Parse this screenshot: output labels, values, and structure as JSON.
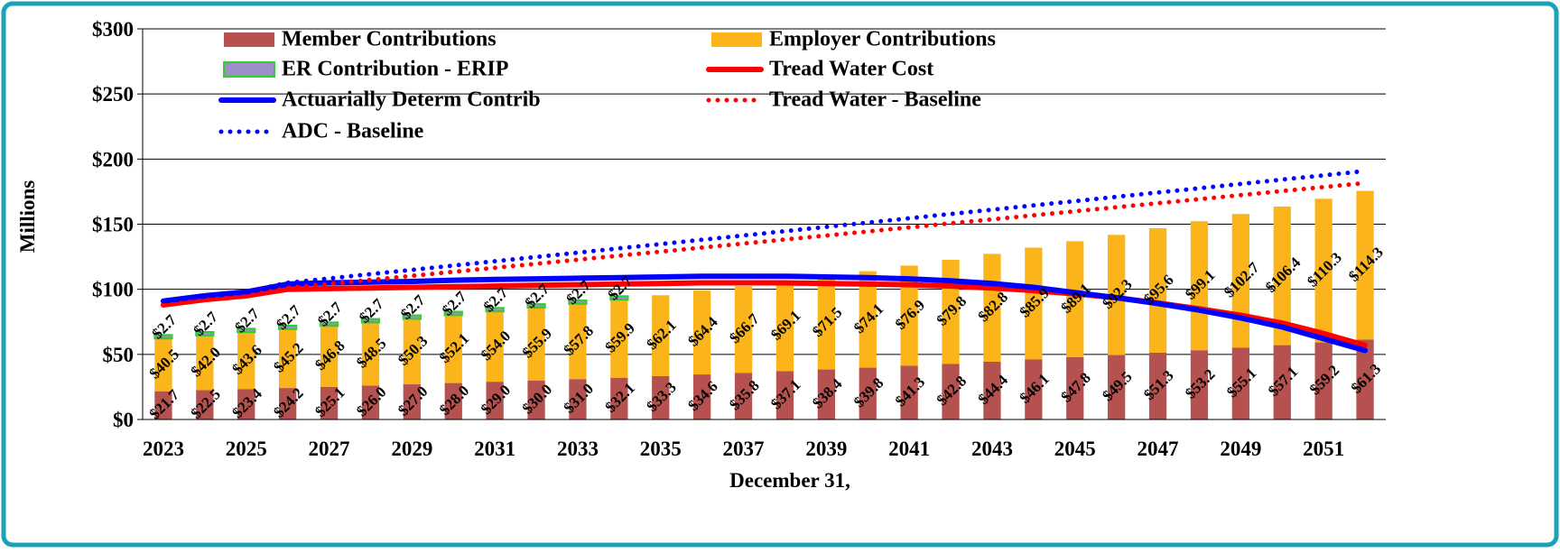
{
  "chart_data": {
    "type": "bar",
    "stacked": true,
    "y_label": "Millions",
    "x_label": "December 31,",
    "categories": [
      2023,
      null,
      2025,
      null,
      2027,
      null,
      2029,
      null,
      2031,
      null,
      2033,
      null,
      2035,
      null,
      2037,
      null,
      2039,
      null,
      2041,
      null,
      2043,
      null,
      2045,
      null,
      2047,
      null,
      2049,
      null,
      2051,
      null
    ],
    "ylim": [
      0,
      300
    ],
    "yticks": [
      {
        "value": 0,
        "label": "$0"
      },
      {
        "value": 50,
        "label": "$50"
      },
      {
        "value": 100,
        "label": "$100"
      },
      {
        "value": 150,
        "label": "$150"
      },
      {
        "value": 200,
        "label": "$200"
      },
      {
        "value": 250,
        "label": "$250"
      },
      {
        "value": 300,
        "label": "$300"
      }
    ],
    "grid": true,
    "series": [
      {
        "name": "Member Contributions",
        "type": "bar",
        "color": "#b5514e",
        "values": [
          21.7,
          22.5,
          23.4,
          24.2,
          25.1,
          26.0,
          27.0,
          28.0,
          29.0,
          30.0,
          31.0,
          32.1,
          33.3,
          34.6,
          35.8,
          37.1,
          38.4,
          39.8,
          41.3,
          42.8,
          44.4,
          46.1,
          47.8,
          49.5,
          51.3,
          53.2,
          55.1,
          57.1,
          59.2,
          61.3
        ],
        "value_labels": [
          "$21.7",
          "$22.5",
          "$23.4",
          "$24.2",
          "$25.1",
          "$26.0",
          "$27.0",
          "$28.0",
          "$29.0",
          "$30.0",
          "$31.0",
          "$32.1",
          "$33.3",
          "$34.6",
          "$35.8",
          "$37.1",
          "$38.4",
          "$39.8",
          "$41.3",
          "$42.8",
          "$44.4",
          "$46.1",
          "$47.8",
          "$49.5",
          "$51.3",
          "$53.2",
          "$55.1",
          "$57.1",
          "$59.2",
          "$61.3"
        ]
      },
      {
        "name": "Employer Contributions",
        "type": "bar",
        "color": "#fbb41a",
        "values": [
          40.5,
          42.0,
          43.6,
          45.2,
          46.8,
          48.5,
          50.3,
          52.1,
          54.0,
          55.9,
          57.8,
          59.9,
          62.1,
          64.4,
          66.7,
          69.1,
          71.5,
          74.1,
          76.9,
          79.8,
          82.8,
          85.9,
          89.1,
          92.3,
          95.6,
          99.1,
          102.7,
          106.4,
          110.3,
          114.3
        ],
        "value_labels": [
          "$40.5",
          "$42.0",
          "$43.6",
          "$45.2",
          "$46.8",
          "$48.5",
          "$50.3",
          "$52.1",
          "$54.0",
          "$55.9",
          "$57.8",
          "$59.9",
          "$62.1",
          "$64.4",
          "$66.7",
          "$69.1",
          "$71.5",
          "$74.1",
          "$76.9",
          "$79.8",
          "$82.8",
          "$85.9",
          "$89.1",
          "$92.3",
          "$95.6",
          "$99.1",
          "$102.7",
          "$106.4",
          "$110.3",
          "$114.3"
        ]
      },
      {
        "name": "ER Contribution - ERIP",
        "type": "bar",
        "color": "#9b8fc7",
        "edge_color": "#33cc33",
        "values": [
          2.7,
          2.7,
          2.7,
          2.7,
          2.7,
          2.7,
          2.7,
          2.7,
          2.7,
          2.7,
          2.7,
          2.7,
          null,
          null,
          null,
          null,
          null,
          null,
          null,
          null,
          null,
          null,
          null,
          null,
          null,
          null,
          null,
          null,
          null,
          null
        ],
        "value_labels": [
          "$2.7",
          "$2.7",
          "$2.7",
          "$2.7",
          "$2.7",
          "$2.7",
          "$2.7",
          "$2.7",
          "$2.7",
          "$2.7",
          "$2.7",
          "$2.7",
          null,
          null,
          null,
          null,
          null,
          null,
          null,
          null,
          null,
          null,
          null,
          null,
          null,
          null,
          null,
          null,
          null,
          null
        ]
      },
      {
        "name": "Tread Water Cost",
        "type": "line",
        "color": "#ff0000",
        "line_style": "solid",
        "values": [
          88,
          92,
          95,
          100,
          100.5,
          101,
          101.5,
          102,
          102.5,
          103,
          103.5,
          104,
          104.5,
          105,
          105,
          105,
          104.5,
          104,
          103.5,
          102.5,
          101,
          99,
          96.5,
          93.5,
          89.5,
          85,
          80,
          74,
          66,
          57
        ]
      },
      {
        "name": "Actuarially Determ Contrib",
        "type": "line",
        "color": "#0000ff",
        "line_style": "solid",
        "values": [
          91,
          95,
          98,
          104,
          105,
          105.5,
          106,
          107,
          107.5,
          108,
          108.5,
          109,
          109.5,
          110,
          110,
          110,
          109.5,
          109,
          108,
          106.5,
          104.5,
          101.5,
          97.5,
          93.5,
          89,
          84,
          78,
          71,
          62,
          53
        ]
      },
      {
        "name": "Tread Water - Baseline",
        "type": "line",
        "color": "#ff0000",
        "line_style": "dotted",
        "values": [
          88,
          92,
          95,
          101,
          104.1,
          107.2,
          110.3,
          113.4,
          116.5,
          119.6,
          122.7,
          125.8,
          128.9,
          132,
          135.1,
          138.2,
          141.3,
          144.4,
          147.5,
          150.6,
          153.7,
          156.8,
          159.9,
          163,
          166.1,
          169.2,
          172.3,
          175.4,
          178.5,
          181.6
        ]
      },
      {
        "name": "ADC - Baseline",
        "type": "line",
        "color": "#0000ff",
        "line_style": "dotted",
        "values": [
          91,
          95,
          98,
          105,
          108.3,
          111.6,
          114.9,
          118.2,
          121.5,
          124.8,
          128.1,
          131.4,
          134.7,
          138,
          141.3,
          144.6,
          147.9,
          151.2,
          154.5,
          157.8,
          161.1,
          164.4,
          167.7,
          171,
          174.3,
          177.6,
          180.9,
          184.2,
          187.5,
          190.8
        ]
      }
    ]
  }
}
